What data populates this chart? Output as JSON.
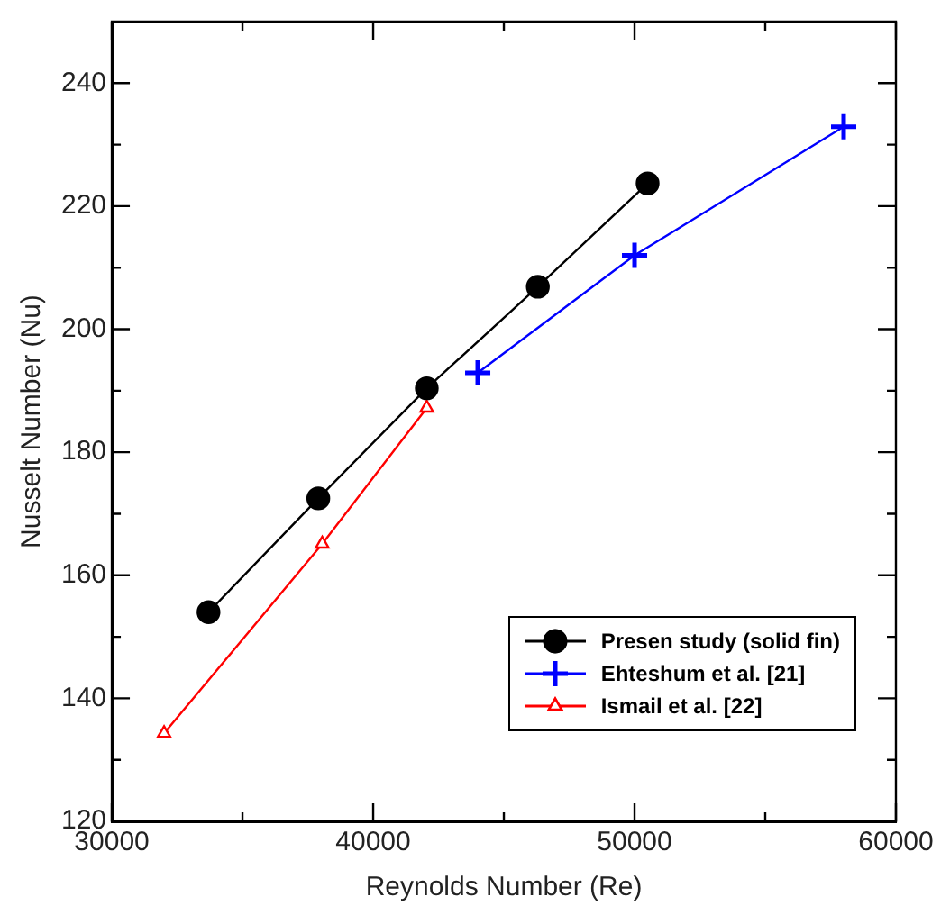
{
  "chart_data": {
    "type": "line",
    "xlabel": "Reynolds Number (Re)",
    "ylabel": "Nusselt Number (Nu)",
    "xlim": [
      30000,
      60000
    ],
    "ylim": [
      120,
      250
    ],
    "xticks": [
      30000,
      {
        "value": 35000,
        "label": null
      },
      40000,
      {
        "value": 45000,
        "label": null
      },
      50000,
      {
        "value": 55000,
        "label": null
      },
      60000
    ],
    "yticks": [
      120,
      {
        "value": 130,
        "label": null
      },
      140,
      {
        "value": 150,
        "label": null
      },
      160,
      {
        "value": 170,
        "label": null
      },
      180,
      {
        "value": 190,
        "label": null
      },
      200,
      {
        "value": 210,
        "label": null
      },
      220,
      {
        "value": 230,
        "label": null
      },
      240
    ],
    "grid": false,
    "legend": "bottom right",
    "series": [
      {
        "name": "Presen study (solid fin)",
        "color": "#000000",
        "marker": "circle",
        "x": [
          33700,
          37900,
          42050,
          46300,
          50500
        ],
        "values": [
          154,
          172.5,
          190.4,
          206.9,
          223.7
        ]
      },
      {
        "name": "Ehteshum et al. [21]",
        "color": "#0000ff",
        "marker": "cross",
        "x": [
          44000,
          50000,
          58000
        ],
        "values": [
          192.9,
          212,
          232.9
        ]
      },
      {
        "name": "Ismail et al. [22]",
        "color": "#ff0000",
        "marker": "triangle",
        "x": [
          32000,
          38050,
          42050
        ],
        "values": [
          134.3,
          165.1,
          187.2
        ]
      }
    ]
  }
}
